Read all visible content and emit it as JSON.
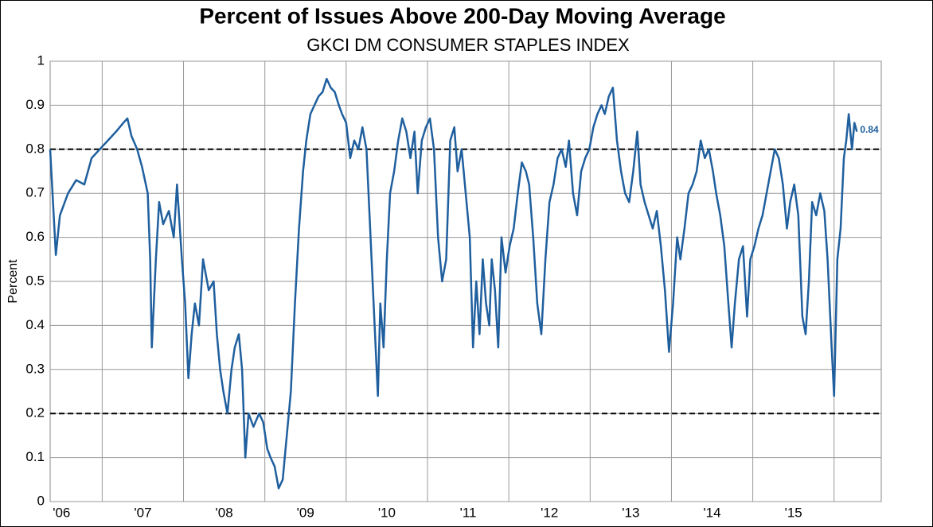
{
  "chart_data": {
    "type": "line",
    "title": "Percent of Issues Above 200-Day Moving Average",
    "subtitle": "GKCI DM CONSUMER STAPLES INDEX",
    "y_label": "Percent",
    "annotation": "0.84",
    "ylim": [
      0,
      1
    ],
    "yticks": [
      0,
      0.1,
      0.2,
      0.3,
      0.4,
      0.5,
      0.6,
      0.7,
      0.8,
      0.9,
      1
    ],
    "xlim": [
      2006.36,
      2016.58
    ],
    "xticks": [
      {
        "value": 2006.5,
        "label": "'06"
      },
      {
        "value": 2007.5,
        "label": "'07"
      },
      {
        "value": 2008.5,
        "label": "'08"
      },
      {
        "value": 2009.5,
        "label": "'09"
      },
      {
        "value": 2010.5,
        "label": "'10"
      },
      {
        "value": 2011.5,
        "label": "'11"
      },
      {
        "value": 2012.5,
        "label": "'12"
      },
      {
        "value": 2013.5,
        "label": "'13"
      },
      {
        "value": 2014.5,
        "label": "'14"
      },
      {
        "value": 2015.5,
        "label": "'15"
      }
    ],
    "xgrid": [
      2007,
      2008,
      2009,
      2010,
      2011,
      2012,
      2013,
      2014,
      2015,
      2016
    ],
    "grid": true,
    "reference_lines": [
      0.8,
      0.2
    ],
    "x": [
      2006.36,
      2006.43,
      2006.48,
      2006.58,
      2006.68,
      2006.78,
      2006.87,
      2006.97,
      2007.07,
      2007.17,
      2007.26,
      2007.31,
      2007.36,
      2007.43,
      2007.49,
      2007.56,
      2007.59,
      2007.61,
      2007.66,
      2007.7,
      2007.75,
      2007.82,
      2007.88,
      2007.92,
      2007.98,
      2008.02,
      2008.06,
      2008.1,
      2008.14,
      2008.19,
      2008.24,
      2008.31,
      2008.37,
      2008.41,
      2008.45,
      2008.49,
      2008.54,
      2008.59,
      2008.63,
      2008.68,
      2008.72,
      2008.76,
      2008.8,
      2008.86,
      2008.93,
      2008.98,
      2009.03,
      2009.07,
      2009.12,
      2009.17,
      2009.22,
      2009.27,
      2009.32,
      2009.37,
      2009.42,
      2009.47,
      2009.51,
      2009.56,
      2009.61,
      2009.66,
      2009.71,
      2009.76,
      2009.81,
      2009.86,
      2009.91,
      2009.95,
      2010.0,
      2010.05,
      2010.1,
      2010.15,
      2010.2,
      2010.25,
      2010.3,
      2010.35,
      2010.39,
      2010.42,
      2010.46,
      2010.5,
      2010.54,
      2010.59,
      2010.64,
      2010.69,
      2010.74,
      2010.79,
      2010.84,
      2010.88,
      2010.93,
      2010.98,
      2011.03,
      2011.08,
      2011.13,
      2011.18,
      2011.23,
      2011.28,
      2011.33,
      2011.37,
      2011.42,
      2011.47,
      2011.52,
      2011.56,
      2011.6,
      2011.64,
      2011.68,
      2011.72,
      2011.76,
      2011.79,
      2011.83,
      2011.87,
      2011.91,
      2011.96,
      2012.01,
      2012.06,
      2012.11,
      2012.16,
      2012.21,
      2012.25,
      2012.3,
      2012.35,
      2012.4,
      2012.45,
      2012.5,
      2012.55,
      2012.6,
      2012.65,
      2012.7,
      2012.74,
      2012.79,
      2012.84,
      2012.89,
      2012.94,
      2012.99,
      2013.04,
      2013.09,
      2013.14,
      2013.18,
      2013.23,
      2013.28,
      2013.33,
      2013.38,
      2013.43,
      2013.48,
      2013.53,
      2013.58,
      2013.62,
      2013.67,
      2013.72,
      2013.77,
      2013.82,
      2013.87,
      2013.92,
      2013.97,
      2014.02,
      2014.07,
      2014.11,
      2014.16,
      2014.21,
      2014.26,
      2014.31,
      2014.36,
      2014.41,
      2014.46,
      2014.51,
      2014.55,
      2014.6,
      2014.65,
      2014.7,
      2014.74,
      2014.78,
      2014.83,
      2014.88,
      2014.93,
      2014.97,
      2015.02,
      2015.07,
      2015.12,
      2015.17,
      2015.22,
      2015.27,
      2015.32,
      2015.37,
      2015.42,
      2015.46,
      2015.51,
      2015.56,
      2015.61,
      2015.65,
      2015.69,
      2015.73,
      2015.78,
      2015.83,
      2015.88,
      2015.92,
      2015.97,
      2016.0,
      2016.04,
      2016.08,
      2016.12,
      2016.15,
      2016.18,
      2016.22,
      2016.25,
      2016.28
    ],
    "series": [
      {
        "color": "#1f5f9e",
        "values": [
          0.8,
          0.56,
          0.65,
          0.7,
          0.73,
          0.72,
          0.78,
          0.8,
          0.82,
          0.84,
          0.86,
          0.87,
          0.83,
          0.8,
          0.76,
          0.7,
          0.55,
          0.35,
          0.55,
          0.68,
          0.63,
          0.66,
          0.6,
          0.72,
          0.55,
          0.45,
          0.28,
          0.38,
          0.45,
          0.4,
          0.55,
          0.48,
          0.5,
          0.38,
          0.3,
          0.25,
          0.2,
          0.3,
          0.35,
          0.38,
          0.3,
          0.1,
          0.2,
          0.17,
          0.2,
          0.18,
          0.12,
          0.1,
          0.08,
          0.03,
          0.05,
          0.15,
          0.25,
          0.45,
          0.62,
          0.75,
          0.82,
          0.88,
          0.9,
          0.92,
          0.93,
          0.96,
          0.94,
          0.93,
          0.9,
          0.88,
          0.86,
          0.78,
          0.82,
          0.8,
          0.85,
          0.8,
          0.6,
          0.4,
          0.24,
          0.45,
          0.35,
          0.55,
          0.7,
          0.75,
          0.82,
          0.87,
          0.84,
          0.78,
          0.84,
          0.7,
          0.82,
          0.85,
          0.87,
          0.8,
          0.6,
          0.5,
          0.55,
          0.82,
          0.85,
          0.75,
          0.8,
          0.7,
          0.6,
          0.35,
          0.5,
          0.38,
          0.55,
          0.45,
          0.4,
          0.55,
          0.48,
          0.35,
          0.6,
          0.52,
          0.58,
          0.62,
          0.7,
          0.77,
          0.75,
          0.72,
          0.6,
          0.45,
          0.38,
          0.55,
          0.68,
          0.72,
          0.78,
          0.8,
          0.76,
          0.82,
          0.7,
          0.65,
          0.75,
          0.78,
          0.8,
          0.85,
          0.88,
          0.9,
          0.88,
          0.92,
          0.94,
          0.82,
          0.75,
          0.7,
          0.68,
          0.75,
          0.84,
          0.72,
          0.68,
          0.65,
          0.62,
          0.66,
          0.58,
          0.48,
          0.34,
          0.45,
          0.6,
          0.55,
          0.62,
          0.7,
          0.72,
          0.75,
          0.82,
          0.78,
          0.8,
          0.75,
          0.7,
          0.65,
          0.58,
          0.45,
          0.35,
          0.45,
          0.55,
          0.58,
          0.42,
          0.55,
          0.58,
          0.62,
          0.65,
          0.7,
          0.75,
          0.8,
          0.78,
          0.72,
          0.62,
          0.68,
          0.72,
          0.65,
          0.42,
          0.38,
          0.5,
          0.68,
          0.65,
          0.7,
          0.66,
          0.55,
          0.35,
          0.24,
          0.55,
          0.62,
          0.78,
          0.82,
          0.88,
          0.8,
          0.86,
          0.84
        ]
      }
    ]
  }
}
